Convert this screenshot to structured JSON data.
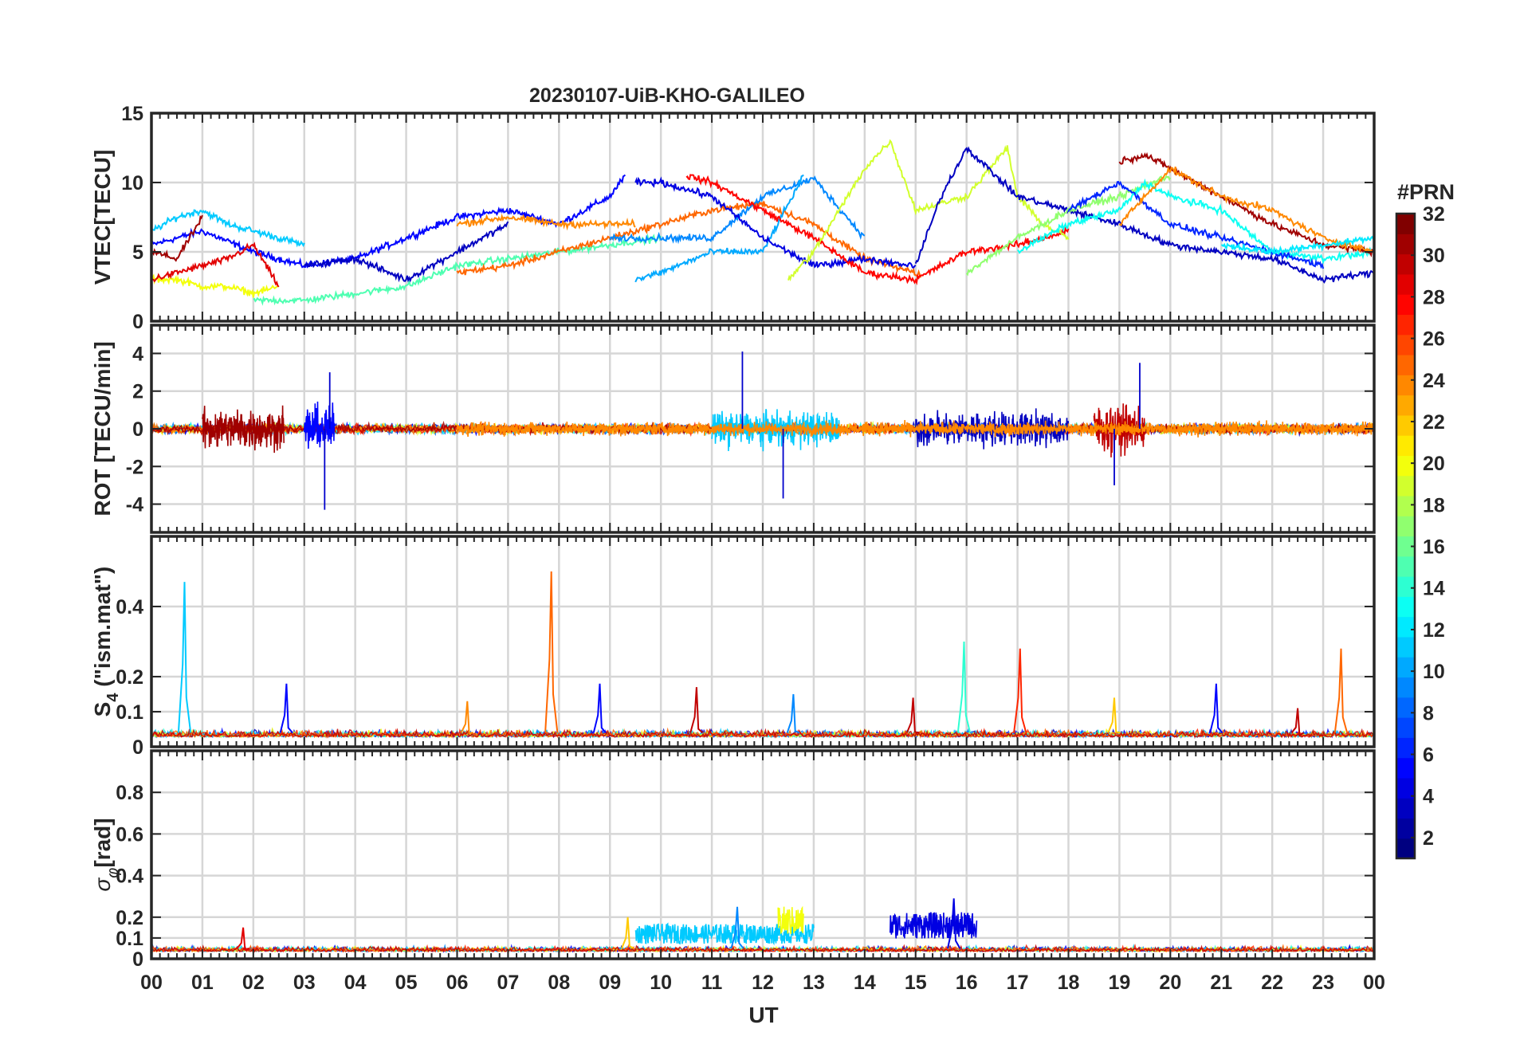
{
  "chart_data": {
    "type": "line",
    "title": "20230107-UiB-KHO-GALILEO",
    "xlabel": "UT",
    "xlim": [
      0,
      24
    ],
    "x_tick_labels": [
      "00",
      "01",
      "02",
      "03",
      "04",
      "05",
      "06",
      "07",
      "08",
      "09",
      "10",
      "11",
      "12",
      "13",
      "14",
      "15",
      "16",
      "17",
      "18",
      "19",
      "20",
      "21",
      "22",
      "23",
      "00"
    ],
    "grid": true,
    "colorbar": {
      "title": "#PRN",
      "range": [
        1,
        32
      ],
      "tick_labels": [
        "2",
        "4",
        "6",
        "8",
        "10",
        "12",
        "14",
        "16",
        "18",
        "20",
        "22",
        "24",
        "26",
        "28",
        "30",
        "32"
      ],
      "colormap": "jet",
      "placement": "right"
    },
    "panels": [
      {
        "id": "vtec",
        "ylabel": "VTEC[TECU]",
        "ylim": [
          0,
          15
        ],
        "yticks": [
          0,
          5,
          10,
          15
        ],
        "y_tick_labels": [
          "0",
          "5",
          "10",
          "15"
        ],
        "series": [
          {
            "prn": 5,
            "x": [
              0,
              1,
              2,
              3,
              4,
              5,
              6,
              7,
              8,
              9,
              9.3
            ],
            "y": [
              5.5,
              6.5,
              5,
              4,
              4.5,
              6,
              7.5,
              8,
              7,
              9,
              10.5
            ]
          },
          {
            "prn": 11,
            "x": [
              0,
              0.5,
              1,
              1.5,
              2,
              2.5,
              3
            ],
            "y": [
              6.5,
              7.5,
              8,
              7,
              6.5,
              6,
              5.5
            ]
          },
          {
            "prn": 20,
            "x": [
              0,
              0.5,
              1,
              1.5,
              2,
              2.5
            ],
            "y": [
              3,
              3,
              2.5,
              2.5,
              2,
              2.5
            ]
          },
          {
            "prn": 29,
            "x": [
              0,
              0.5,
              1,
              1.5,
              2,
              2.5
            ],
            "y": [
              3,
              3.5,
              4,
              4.5,
              5.5,
              2.5
            ]
          },
          {
            "prn": 31,
            "x": [
              0,
              0.5,
              1
            ],
            "y": [
              5,
              4.5,
              7.5
            ]
          },
          {
            "prn": 15,
            "x": [
              2,
              3,
              4,
              5,
              6,
              7,
              8,
              9,
              10
            ],
            "y": [
              1.5,
              1.5,
              2,
              2.5,
              4,
              4.5,
              5,
              5.5,
              6
            ]
          },
          {
            "prn": 3,
            "x": [
              3,
              4,
              5,
              6,
              7
            ],
            "y": [
              4,
              4.5,
              3,
              5,
              7
            ]
          },
          {
            "prn": 25,
            "x": [
              6,
              7,
              8,
              9,
              10,
              11,
              12,
              13,
              14,
              15,
              15.1
            ],
            "y": [
              3.5,
              4,
              5,
              6,
              7,
              8,
              8.5,
              7,
              4.5,
              3.5,
              3.3
            ]
          },
          {
            "prn": 24,
            "x": [
              6,
              7,
              8,
              9,
              9.5
            ],
            "y": [
              7,
              7.5,
              7,
              7,
              7
            ]
          },
          {
            "prn": 9,
            "x": [
              9,
              10,
              11,
              12,
              13,
              14
            ],
            "y": [
              6,
              6,
              6,
              9,
              10.3,
              6
            ]
          },
          {
            "prn": 10,
            "x": [
              9.5,
              10,
              11,
              12,
              12.8
            ],
            "y": [
              3,
              3.5,
              5,
              5,
              10.5
            ]
          },
          {
            "prn": 4,
            "x": [
              9.5,
              10,
              11,
              12,
              13,
              14,
              15
            ],
            "y": [
              10,
              10,
              9,
              6,
              4,
              4.5,
              4
            ]
          },
          {
            "prn": 28,
            "x": [
              10.5,
              11,
              12,
              13,
              14,
              15,
              16,
              17,
              18
            ],
            "y": [
              10.5,
              10,
              8,
              6,
              3.5,
              3,
              5,
              5.5,
              6.5
            ]
          },
          {
            "prn": 19,
            "x": [
              12.5,
              13,
              14,
              14.5,
              15,
              16,
              16.8,
              17,
              17.5,
              18
            ],
            "y": [
              3,
              5,
              11,
              13,
              8,
              9,
              12.5,
              9,
              7,
              6
            ]
          },
          {
            "prn": 3,
            "x": [
              15,
              15.5,
              16,
              17,
              18,
              19,
              20,
              21,
              22,
              23,
              24
            ],
            "y": [
              4,
              9,
              12.5,
              9,
              8,
              7,
              5.5,
              5,
              4.5,
              3,
              3.5
            ]
          },
          {
            "prn": 17,
            "x": [
              16,
              17,
              18,
              19,
              20
            ],
            "y": [
              3.5,
              6,
              8,
              9,
              10.5
            ]
          },
          {
            "prn": 13,
            "x": [
              17,
              18,
              19,
              19.5,
              20,
              21,
              22,
              23,
              24
            ],
            "y": [
              5,
              7,
              8,
              10,
              9,
              8,
              5,
              4.5,
              5
            ]
          },
          {
            "prn": 6,
            "x": [
              18,
              19,
              20,
              21,
              22,
              23
            ],
            "y": [
              8,
              10,
              7,
              6,
              5,
              4
            ]
          },
          {
            "prn": 31,
            "x": [
              19,
              19.5,
              20,
              21,
              22,
              23,
              24
            ],
            "y": [
              11.5,
              12,
              11,
              9,
              7,
              5.5,
              5
            ]
          },
          {
            "prn": 24,
            "x": [
              19,
              20,
              21,
              22,
              23,
              24
            ],
            "y": [
              7,
              11,
              9,
              8,
              6,
              5
            ]
          },
          {
            "prn": 12,
            "x": [
              21,
              22,
              23,
              24
            ],
            "y": [
              5.5,
              5,
              5.5,
              6
            ]
          }
        ]
      },
      {
        "id": "rot",
        "ylabel": "ROT [TECU/min]",
        "ylim": [
          -5.5,
          5.5
        ],
        "yticks": [
          -4,
          -2,
          0,
          2,
          4
        ],
        "y_tick_labels": [
          "-4",
          "-2",
          "0",
          "2",
          "4"
        ],
        "noise_segments": [
          {
            "prn": 31,
            "x_range": [
              1,
              2.6
            ],
            "amplitude": 2.2
          },
          {
            "prn": 5,
            "x_range": [
              3,
              3.6
            ],
            "amplitude": 2.5
          },
          {
            "prn": 3,
            "x_range": [
              15,
              18
            ],
            "amplitude": 1.8
          },
          {
            "prn": 30,
            "x_range": [
              18.5,
              19.5
            ],
            "amplitude": 2.5
          },
          {
            "prn": 11,
            "x_range": [
              11,
              13.5
            ],
            "amplitude": 1.8
          },
          {
            "prn": 24,
            "x_range": [
              6,
              24
            ],
            "amplitude": 0.7
          }
        ],
        "peaks": [
          {
            "x": 3.4,
            "y": -4.3
          },
          {
            "x": 3.5,
            "y": 3.0
          },
          {
            "x": 11.6,
            "y": 4.1
          },
          {
            "x": 12.4,
            "y": -3.7
          },
          {
            "x": 18.9,
            "y": -3.0
          },
          {
            "x": 19.4,
            "y": 3.5
          }
        ]
      },
      {
        "id": "s4",
        "ylabel": "S4 (\"ism.mat\")",
        "ylim": [
          0,
          0.6
        ],
        "yticks": [
          0,
          0.1,
          0.2,
          0.4
        ],
        "y_tick_labels": [
          "0",
          "0.1",
          "0.2",
          "0.4"
        ],
        "baseline": 0.04,
        "spikes": [
          {
            "prn": 11,
            "x": 0.65,
            "y": 0.47
          },
          {
            "prn": 5,
            "x": 2.65,
            "y": 0.18
          },
          {
            "prn": 24,
            "x": 6.2,
            "y": 0.13
          },
          {
            "prn": 25,
            "x": 7.85,
            "y": 0.5
          },
          {
            "prn": 5,
            "x": 8.8,
            "y": 0.18
          },
          {
            "prn": 30,
            "x": 10.7,
            "y": 0.17
          },
          {
            "prn": 9,
            "x": 12.6,
            "y": 0.15
          },
          {
            "prn": 30,
            "x": 14.95,
            "y": 0.14
          },
          {
            "prn": 14,
            "x": 15.95,
            "y": 0.3
          },
          {
            "prn": 27,
            "x": 17.05,
            "y": 0.28
          },
          {
            "prn": 22,
            "x": 18.9,
            "y": 0.14
          },
          {
            "prn": 5,
            "x": 20.9,
            "y": 0.18
          },
          {
            "prn": 30,
            "x": 22.5,
            "y": 0.11
          },
          {
            "prn": 25,
            "x": 23.35,
            "y": 0.28
          }
        ]
      },
      {
        "id": "sigma_phi",
        "ylabel": "σφ[rad]",
        "ylim": [
          0,
          1
        ],
        "yticks": [
          0,
          0.1,
          0.2,
          0.4,
          0.6,
          0.8
        ],
        "y_tick_labels": [
          "0",
          "0.1",
          "0.2",
          "0.4",
          "0.6",
          "0.8"
        ],
        "baseline": 0.05,
        "segments": [
          {
            "prn": 11,
            "x_range": [
              9.5,
              13
            ],
            "level": 0.12
          },
          {
            "prn": 20,
            "x_range": [
              12.3,
              12.8
            ],
            "level": 0.18
          },
          {
            "prn": 4,
            "x_range": [
              14.5,
              16.2
            ],
            "level": 0.16
          }
        ],
        "spikes": [
          {
            "prn": 22,
            "x": 9.35,
            "y": 0.2
          },
          {
            "prn": 9,
            "x": 11.5,
            "y": 0.25
          },
          {
            "prn": 4,
            "x": 15.75,
            "y": 0.29
          },
          {
            "prn": 29,
            "x": 1.8,
            "y": 0.15
          }
        ]
      }
    ]
  }
}
